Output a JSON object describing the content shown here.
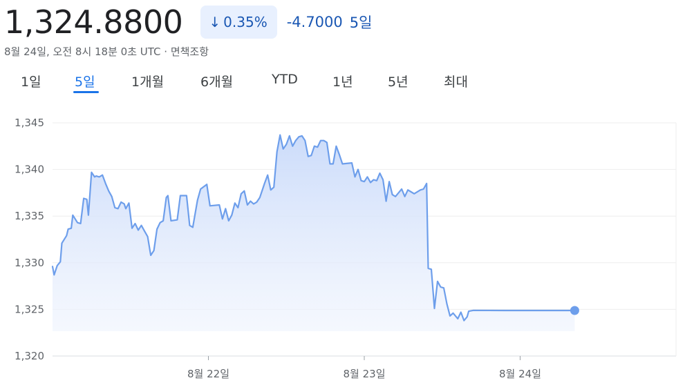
{
  "header": {
    "price": "1,324.8800",
    "change_percent": "0.35%",
    "arrow_icon": "arrow-down-icon",
    "change_absolute": "-4.7000",
    "change_period": "5일",
    "timestamp": "8월 24일, 오전 8시 18분 0초 UTC · 면책조항"
  },
  "colors": {
    "accent": "#1a73e8",
    "line": "#6d9eeb",
    "negative_text": "#1a57b3"
  },
  "tabs": [
    {
      "label": "1일",
      "active": false
    },
    {
      "label": "5일",
      "active": true
    },
    {
      "label": "1개월",
      "active": false
    },
    {
      "label": "6개월",
      "active": false
    },
    {
      "label": "YTD",
      "active": false
    },
    {
      "label": "1년",
      "active": false
    },
    {
      "label": "5년",
      "active": false
    },
    {
      "label": "최대",
      "active": false
    }
  ],
  "chart_data": {
    "type": "area",
    "title": "",
    "xlabel": "",
    "ylabel": "",
    "ylim": [
      1320,
      1345
    ],
    "yticks": [
      "1,320",
      "1,325",
      "1,330",
      "1,335",
      "1,340",
      "1,345"
    ],
    "ytick_values": [
      1320,
      1325,
      1330,
      1335,
      1340,
      1345
    ],
    "xticks": [
      "8월 22일",
      "8월 23일",
      "8월 24일"
    ],
    "xtick_values": [
      3.0,
      4.0,
      5.0
    ],
    "xlim": [
      2.0,
      6.0
    ],
    "grid": true,
    "series": [
      {
        "values": [
          [
            2.0,
            1329.6
          ],
          [
            2.01,
            1328.7
          ],
          [
            2.03,
            1329.7
          ],
          [
            2.05,
            1330.1
          ],
          [
            2.06,
            1332.1
          ],
          [
            2.09,
            1332.9
          ],
          [
            2.1,
            1333.6
          ],
          [
            2.12,
            1333.7
          ],
          [
            2.13,
            1335.1
          ],
          [
            2.16,
            1334.3
          ],
          [
            2.18,
            1334.2
          ],
          [
            2.2,
            1336.9
          ],
          [
            2.22,
            1336.8
          ],
          [
            2.23,
            1335.1
          ],
          [
            2.25,
            1339.7
          ],
          [
            2.27,
            1339.2
          ],
          [
            2.28,
            1339.3
          ],
          [
            2.3,
            1339.2
          ],
          [
            2.32,
            1339.4
          ],
          [
            2.34,
            1338.5
          ],
          [
            2.36,
            1337.7
          ],
          [
            2.38,
            1337.1
          ],
          [
            2.4,
            1335.9
          ],
          [
            2.42,
            1335.8
          ],
          [
            2.44,
            1336.5
          ],
          [
            2.46,
            1336.3
          ],
          [
            2.47,
            1335.8
          ],
          [
            2.49,
            1336.4
          ],
          [
            2.51,
            1333.7
          ],
          [
            2.53,
            1334.2
          ],
          [
            2.55,
            1333.5
          ],
          [
            2.57,
            1334.0
          ],
          [
            2.59,
            1333.4
          ],
          [
            2.61,
            1332.8
          ],
          [
            2.63,
            1330.8
          ],
          [
            2.65,
            1331.3
          ],
          [
            2.67,
            1333.6
          ],
          [
            2.69,
            1334.3
          ],
          [
            2.71,
            1334.5
          ],
          [
            2.73,
            1337.0
          ],
          [
            2.74,
            1337.2
          ],
          [
            2.76,
            1334.5
          ],
          [
            2.8,
            1334.6
          ],
          [
            2.82,
            1337.2
          ],
          [
            2.86,
            1337.2
          ],
          [
            2.88,
            1334.0
          ],
          [
            2.9,
            1333.8
          ],
          [
            2.93,
            1336.7
          ],
          [
            2.95,
            1337.9
          ],
          [
            2.99,
            1338.4
          ],
          [
            3.01,
            1336.1
          ],
          [
            3.07,
            1336.2
          ],
          [
            3.09,
            1334.7
          ],
          [
            3.11,
            1335.8
          ],
          [
            3.13,
            1334.5
          ],
          [
            3.15,
            1335.1
          ],
          [
            3.17,
            1336.4
          ],
          [
            3.19,
            1335.9
          ],
          [
            3.21,
            1337.4
          ],
          [
            3.23,
            1337.7
          ],
          [
            3.25,
            1336.2
          ],
          [
            3.27,
            1336.6
          ],
          [
            3.29,
            1336.3
          ],
          [
            3.31,
            1336.5
          ],
          [
            3.33,
            1337.0
          ],
          [
            3.36,
            1338.5
          ],
          [
            3.38,
            1339.4
          ],
          [
            3.4,
            1337.8
          ],
          [
            3.42,
            1338.1
          ],
          [
            3.44,
            1341.9
          ],
          [
            3.46,
            1343.7
          ],
          [
            3.48,
            1342.2
          ],
          [
            3.5,
            1342.7
          ],
          [
            3.52,
            1343.6
          ],
          [
            3.54,
            1342.5
          ],
          [
            3.56,
            1343.1
          ],
          [
            3.58,
            1343.5
          ],
          [
            3.6,
            1343.6
          ],
          [
            3.62,
            1343.1
          ],
          [
            3.64,
            1341.4
          ],
          [
            3.66,
            1341.5
          ],
          [
            3.68,
            1342.5
          ],
          [
            3.7,
            1342.4
          ],
          [
            3.72,
            1343.1
          ],
          [
            3.74,
            1343.1
          ],
          [
            3.76,
            1342.9
          ],
          [
            3.78,
            1340.6
          ],
          [
            3.8,
            1340.6
          ],
          [
            3.82,
            1342.5
          ],
          [
            3.84,
            1341.6
          ],
          [
            3.86,
            1340.6
          ],
          [
            3.92,
            1340.7
          ],
          [
            3.94,
            1339.2
          ],
          [
            3.96,
            1340.0
          ],
          [
            3.98,
            1338.8
          ],
          [
            4.0,
            1338.7
          ],
          [
            4.02,
            1339.2
          ],
          [
            4.04,
            1338.6
          ],
          [
            4.06,
            1338.9
          ],
          [
            4.08,
            1338.8
          ],
          [
            4.1,
            1339.6
          ],
          [
            4.12,
            1338.9
          ],
          [
            4.14,
            1336.6
          ],
          [
            4.16,
            1338.7
          ],
          [
            4.18,
            1337.3
          ],
          [
            4.2,
            1337.1
          ],
          [
            4.22,
            1337.5
          ],
          [
            4.24,
            1337.9
          ],
          [
            4.26,
            1337.1
          ],
          [
            4.28,
            1337.8
          ],
          [
            4.3,
            1337.6
          ],
          [
            4.32,
            1337.4
          ],
          [
            4.36,
            1337.8
          ],
          [
            4.38,
            1337.9
          ],
          [
            4.4,
            1338.5
          ],
          [
            4.41,
            1329.4
          ],
          [
            4.43,
            1329.3
          ],
          [
            4.45,
            1325.1
          ],
          [
            4.47,
            1328.0
          ],
          [
            4.49,
            1327.4
          ],
          [
            4.51,
            1327.3
          ],
          [
            4.53,
            1325.6
          ],
          [
            4.55,
            1324.3
          ],
          [
            4.57,
            1324.6
          ],
          [
            4.6,
            1324.0
          ],
          [
            4.62,
            1324.7
          ],
          [
            4.64,
            1323.8
          ],
          [
            4.66,
            1324.2
          ],
          [
            4.67,
            1324.8
          ],
          [
            4.7,
            1324.9
          ],
          [
            4.9,
            1324.88
          ],
          [
            5.35,
            1324.88
          ]
        ]
      }
    ],
    "last_value": 1324.88
  }
}
